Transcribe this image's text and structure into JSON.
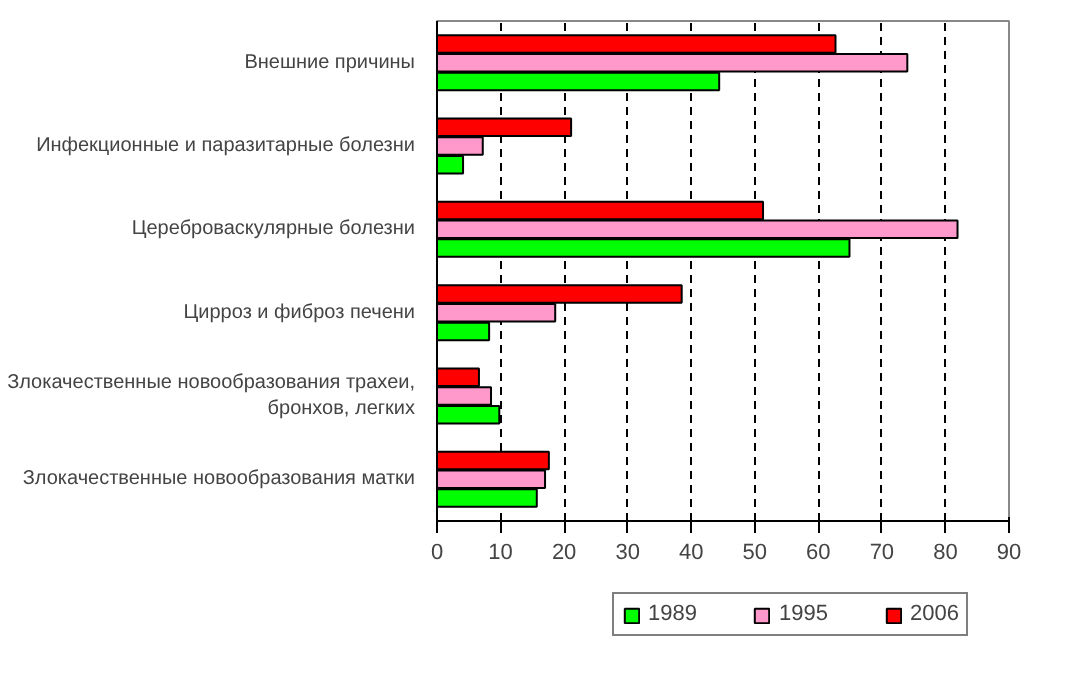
{
  "chart_data": {
    "type": "bar",
    "orientation": "horizontal",
    "categories": [
      "Внешние причины",
      "Инфекционные и паразитарные болезни",
      "Цереброваскулярные болезни",
      "Цирроз и фиброз печени",
      "Злокачественные новообразования трахеи,\nбронхов, легких",
      "Злокачественные новообразования матки"
    ],
    "series": [
      {
        "name": "1989",
        "color": "#00ff00",
        "values": [
          44.4,
          4.1,
          64.9,
          8.2,
          9.8,
          15.7
        ]
      },
      {
        "name": "1995",
        "color": "#ff99cc",
        "values": [
          74.0,
          7.2,
          81.9,
          18.6,
          8.5,
          17.0
        ]
      },
      {
        "name": "2006",
        "color": "#ff0000",
        "values": [
          62.7,
          21.1,
          51.3,
          38.5,
          6.6,
          17.6
        ]
      }
    ],
    "xlim": [
      0,
      90
    ],
    "xticks": [
      0,
      10,
      20,
      30,
      40,
      50,
      60,
      70,
      80,
      90
    ],
    "grid": "x",
    "legend": "bottom right"
  }
}
